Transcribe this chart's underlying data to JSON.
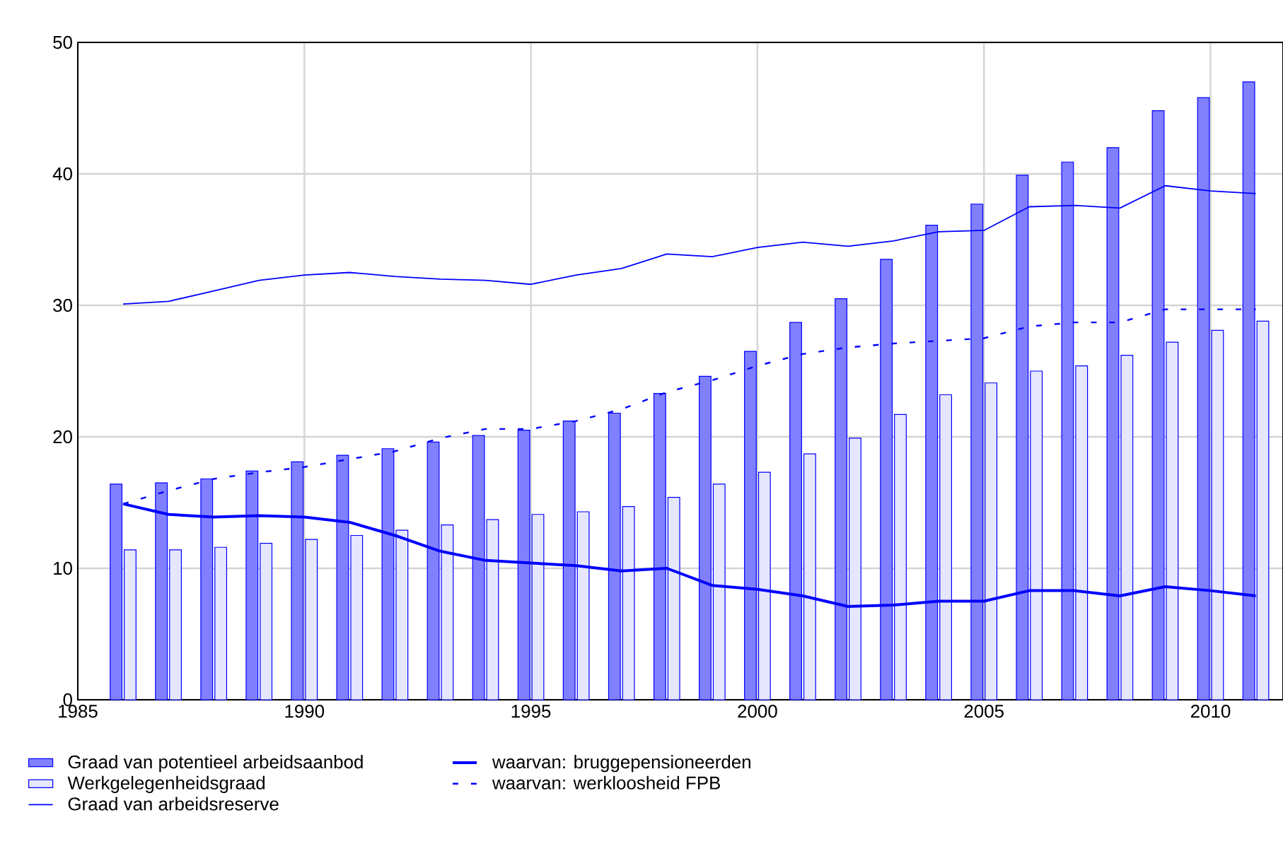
{
  "chart_data": {
    "type": "bar",
    "x": [
      1986,
      1987,
      1988,
      1989,
      1990,
      1991,
      1992,
      1993,
      1994,
      1995,
      1996,
      1997,
      1998,
      1999,
      2000,
      2001,
      2002,
      2003,
      2004,
      2005,
      2006,
      2007,
      2008,
      2009,
      2010,
      2011
    ],
    "series": [
      {
        "name": "Graad van potentieel arbeidsaanbod",
        "color": "#8080ff",
        "values": [
          16.4,
          16.5,
          16.8,
          17.4,
          18.1,
          18.6,
          19.1,
          19.6,
          20.1,
          20.5,
          21.2,
          21.8,
          23.3,
          24.6,
          26.5,
          28.7,
          30.5,
          33.5,
          36.1,
          37.7,
          39.9,
          40.9,
          42.0,
          44.8,
          45.8,
          47.0
        ]
      },
      {
        "name": "Werkgelegenheidsgraad",
        "color": "#e6e6ff",
        "values": [
          11.4,
          11.4,
          11.6,
          11.9,
          12.2,
          12.5,
          12.9,
          13.3,
          13.7,
          14.1,
          14.3,
          14.7,
          15.4,
          16.4,
          17.3,
          18.7,
          19.9,
          21.7,
          23.2,
          24.1,
          25.0,
          25.4,
          26.2,
          27.2,
          28.1,
          28.8
        ]
      },
      {
        "name": "Graad van arbeidsreserve",
        "type": "line",
        "color": "#0000ff",
        "line_style": "solid",
        "values": [
          30.1,
          30.3,
          31.1,
          31.9,
          32.3,
          32.5,
          32.2,
          32.0,
          31.9,
          31.6,
          32.3,
          32.8,
          33.9,
          33.7,
          34.4,
          34.8,
          34.5,
          34.9,
          35.6,
          35.7,
          37.5,
          37.6,
          37.4,
          39.1,
          38.7,
          38.5
        ]
      },
      {
        "name": "waarvan: bruggepensioneerden",
        "type": "line",
        "color": "#0000ff",
        "line_style": "solid",
        "values": [
          14.9,
          14.1,
          13.9,
          14.0,
          13.9,
          13.5,
          12.5,
          11.3,
          10.6,
          10.4,
          10.2,
          9.8,
          10.0,
          8.7,
          8.4,
          7.9,
          7.1,
          7.2,
          7.5,
          7.5,
          8.3,
          8.3,
          7.9,
          8.6,
          8.3,
          7.9
        ]
      },
      {
        "name": "waarvan: werkloosheid FPB",
        "type": "line",
        "color": "#0000ff",
        "line_style": "dashed",
        "values": [
          14.9,
          15.9,
          16.8,
          17.3,
          17.7,
          18.3,
          18.9,
          19.9,
          20.6,
          20.6,
          21.2,
          22.1,
          23.4,
          24.3,
          25.4,
          26.3,
          26.8,
          27.1,
          27.3,
          27.5,
          28.4,
          28.7,
          28.7,
          29.7,
          29.7,
          29.7
        ]
      }
    ],
    "xlim": [
      1985,
      2011.6
    ],
    "xticks": [
      1985,
      1990,
      1995,
      2000,
      2005,
      2010
    ],
    "ylim": [
      0,
      50
    ],
    "yticks": [
      0,
      10,
      20,
      30,
      40,
      50
    ],
    "grid": true,
    "legend": "bottom"
  }
}
